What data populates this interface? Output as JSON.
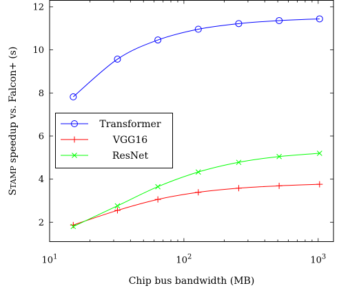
{
  "chart_data": {
    "type": "line",
    "xlabel": "Chip bus bandwidth (MB)",
    "ylabel": "Stamp speedup vs. Falcon+ (s)",
    "x_scale": "log",
    "xlim": [
      10,
      1300
    ],
    "ylim": [
      1.1,
      12.3
    ],
    "grid": false,
    "legend_position": "center-left",
    "x_ticks": [
      {
        "value": 10,
        "base": "10",
        "exp": "1"
      },
      {
        "value": 100,
        "base": "10",
        "exp": "2"
      },
      {
        "value": 1000,
        "base": "10",
        "exp": "3"
      }
    ],
    "y_ticks": [
      2,
      4,
      6,
      8,
      10,
      12
    ],
    "x": [
      15,
      32,
      64,
      128,
      256,
      512,
      1024
    ],
    "series": [
      {
        "name": "Transformer",
        "color": "#0000ff",
        "marker": "circle",
        "values": [
          7.82,
          9.57,
          10.46,
          10.96,
          11.22,
          11.36,
          11.44
        ]
      },
      {
        "name": "VGG16",
        "color": "#ff0000",
        "marker": "plus",
        "values": [
          1.87,
          2.55,
          3.06,
          3.39,
          3.58,
          3.69,
          3.76
        ]
      },
      {
        "name": "ResNet",
        "color": "#00ff00",
        "marker": "cross",
        "values": [
          1.8,
          2.76,
          3.65,
          4.33,
          4.78,
          5.05,
          5.2
        ]
      }
    ]
  }
}
